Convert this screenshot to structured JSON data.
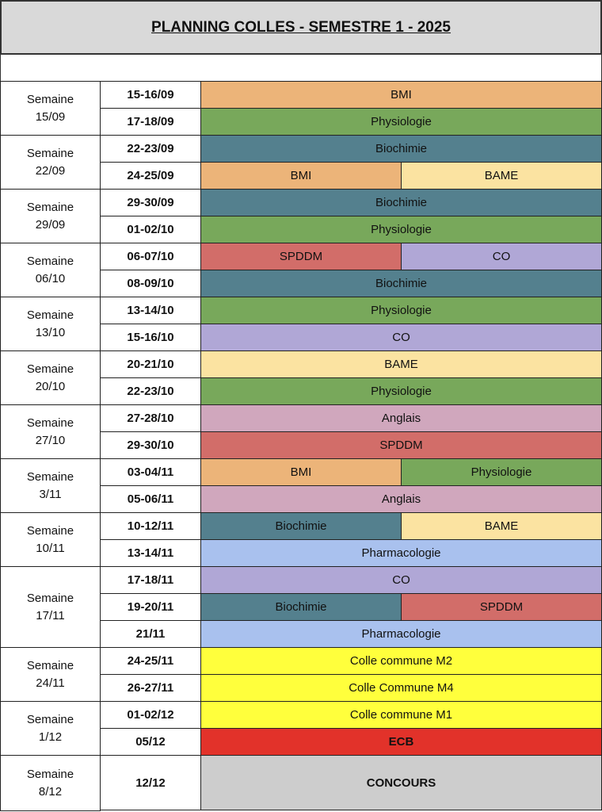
{
  "title": "PLANNING COLLES - SEMESTRE 1 - 2025",
  "colors": {
    "BMI": "#ecb479",
    "Physiologie": "#78a85b",
    "Biochimie": "#54808e",
    "BAME": "#fbe3a1",
    "SPDDM": "#d26d69",
    "CO": "#b0a7d6",
    "Anglais": "#d0a7bd",
    "Pharmacologie": "#a9c1ee",
    "Colle commune M2": "#ffff3c",
    "Colle Commune M4": "#ffff3c",
    "Colle commune M1": "#ffff3c",
    "ECB": "#e2322a",
    "CONCOURS": "#cdcdcd"
  },
  "weeks": [
    {
      "label": "Semaine",
      "date": "15/09",
      "rows": [
        {
          "date": "15-16/09",
          "slots": [
            "BMI"
          ]
        },
        {
          "date": "17-18/09",
          "slots": [
            "Physiologie"
          ]
        }
      ]
    },
    {
      "label": "Semaine",
      "date": "22/09",
      "rows": [
        {
          "date": "22-23/09",
          "slots": [
            "Biochimie"
          ]
        },
        {
          "date": "24-25/09",
          "slots": [
            "BMI",
            "BAME"
          ]
        }
      ]
    },
    {
      "label": "Semaine",
      "date": "29/09",
      "rows": [
        {
          "date": "29-30/09",
          "slots": [
            "Biochimie"
          ]
        },
        {
          "date": "01-02/10",
          "slots": [
            "Physiologie"
          ]
        }
      ]
    },
    {
      "label": "Semaine",
      "date": "06/10",
      "rows": [
        {
          "date": "06-07/10",
          "slots": [
            "SPDDM",
            "CO"
          ]
        },
        {
          "date": "08-09/10",
          "slots": [
            "Biochimie"
          ]
        }
      ]
    },
    {
      "label": "Semaine",
      "date": "13/10",
      "rows": [
        {
          "date": "13-14/10",
          "slots": [
            "Physiologie"
          ]
        },
        {
          "date": "15-16/10",
          "slots": [
            "CO"
          ]
        }
      ]
    },
    {
      "label": "Semaine",
      "date": "20/10",
      "rows": [
        {
          "date": "20-21/10",
          "slots": [
            "BAME"
          ]
        },
        {
          "date": "22-23/10",
          "slots": [
            "Physiologie"
          ]
        }
      ]
    },
    {
      "label": "Semaine",
      "date": "27/10",
      "rows": [
        {
          "date": "27-28/10",
          "slots": [
            "Anglais"
          ]
        },
        {
          "date": "29-30/10",
          "slots": [
            "SPDDM"
          ]
        }
      ]
    },
    {
      "label": "Semaine",
      "date": "3/11",
      "rows": [
        {
          "date": "03-04/11",
          "slots": [
            "BMI",
            "Physiologie"
          ]
        },
        {
          "date": "05-06/11",
          "slots": [
            "Anglais"
          ]
        }
      ]
    },
    {
      "label": "Semaine",
      "date": "10/11",
      "rows": [
        {
          "date": "10-12/11",
          "slots": [
            "Biochimie",
            "BAME"
          ]
        },
        {
          "date": "13-14/11",
          "slots": [
            "Pharmacologie"
          ]
        }
      ]
    },
    {
      "label": "Semaine",
      "date": "17/11",
      "rows": [
        {
          "date": "17-18/11",
          "slots": [
            "CO"
          ]
        },
        {
          "date": "19-20/11",
          "slots": [
            "Biochimie",
            "SPDDM"
          ]
        },
        {
          "date": "21/11",
          "slots": [
            "Pharmacologie"
          ]
        }
      ]
    },
    {
      "label": "Semaine",
      "date": "24/11",
      "rows": [
        {
          "date": "24-25/11",
          "slots": [
            "Colle commune M2"
          ]
        },
        {
          "date": "26-27/11",
          "slots": [
            "Colle Commune M4"
          ]
        }
      ]
    },
    {
      "label": "Semaine",
      "date": "1/12",
      "rows": [
        {
          "date": "01-02/12",
          "slots": [
            "Colle commune M1"
          ]
        },
        {
          "date": "05/12",
          "slots": [
            "ECB"
          ],
          "bold": true
        }
      ]
    },
    {
      "label": "Semaine",
      "date": "8/12",
      "rows": [
        {
          "date": "12/12",
          "slots": [
            "CONCOURS"
          ],
          "bold": true,
          "tall": true
        }
      ]
    }
  ]
}
